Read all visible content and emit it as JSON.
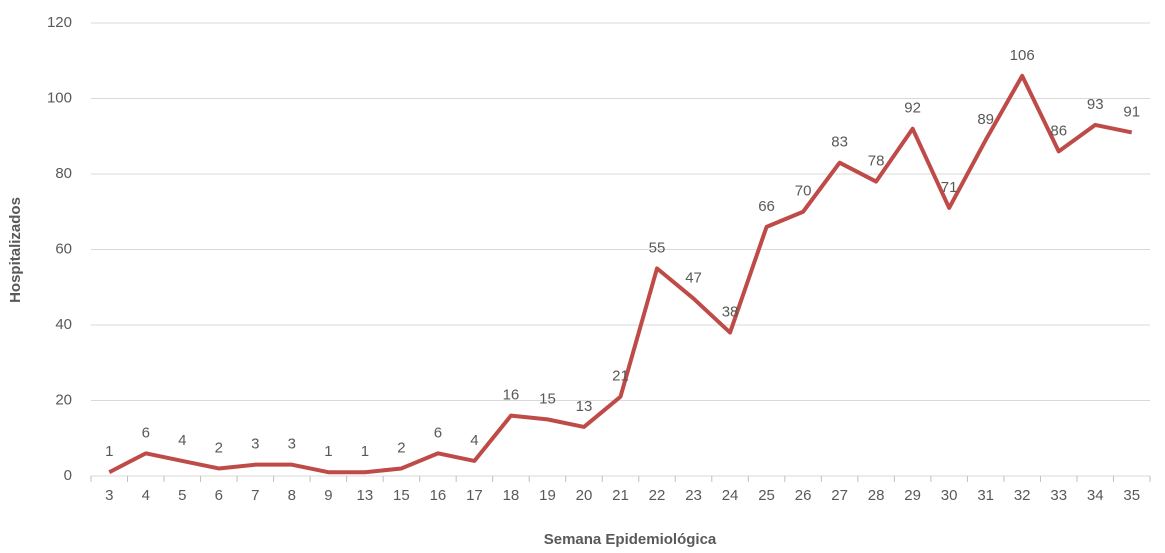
{
  "chart_data": {
    "type": "line",
    "x_label": "Semana Epidemiológica",
    "y_label": "Hospitalizados",
    "categories": [
      "3",
      "4",
      "5",
      "6",
      "7",
      "8",
      "9",
      "13",
      "15",
      "16",
      "17",
      "18",
      "19",
      "20",
      "21",
      "22",
      "23",
      "24",
      "25",
      "26",
      "27",
      "28",
      "29",
      "30",
      "31",
      "32",
      "33",
      "34",
      "35"
    ],
    "series": [
      {
        "name": "Hospitalizados",
        "color": "#be4b48",
        "values": [
          1,
          6,
          4,
          2,
          3,
          3,
          1,
          1,
          2,
          6,
          4,
          16,
          15,
          13,
          21,
          55,
          47,
          38,
          66,
          70,
          83,
          78,
          92,
          71,
          89,
          106,
          86,
          93,
          91
        ]
      }
    ],
    "ylim": [
      0,
      120
    ],
    "yticks": [
      0,
      20,
      40,
      60,
      80,
      100,
      120
    ],
    "grid": true,
    "data_labels": true
  }
}
